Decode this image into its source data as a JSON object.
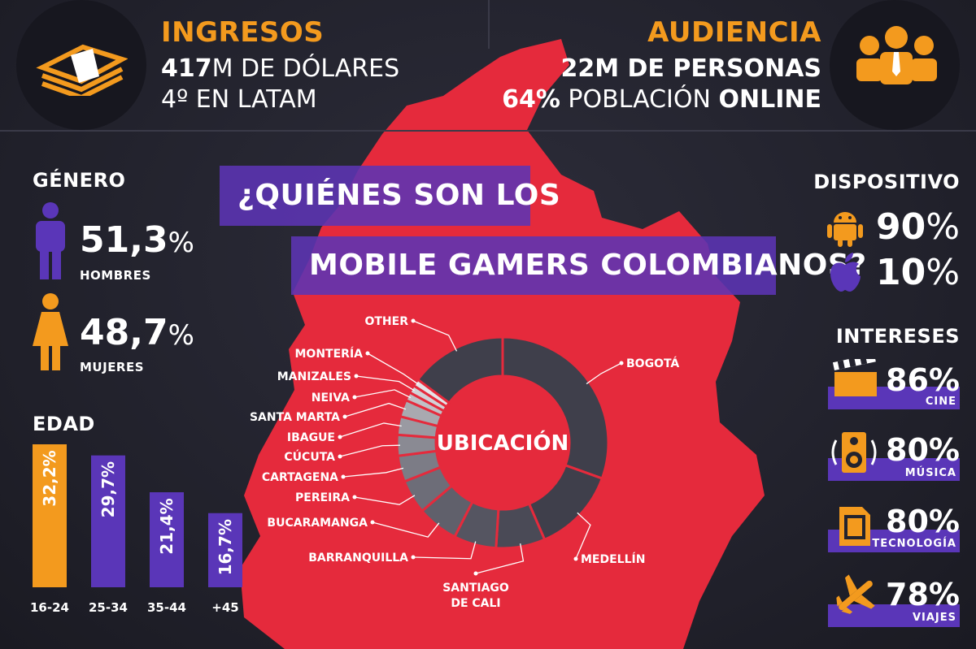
{
  "header": {
    "ingresos": {
      "title": "INGRESOS",
      "line1_bold": "417",
      "line1_rest": "M DE DÓLARES",
      "line2": "4º EN LATAM"
    },
    "audiencia": {
      "title": "AUDIENCIA",
      "line1": "22M DE PERSONAS",
      "line2_bold": "64%",
      "line2_mid": " POBLACIÓN ",
      "line2_end": "ONLINE"
    }
  },
  "banner": {
    "line1": "¿QUIÉNES SON LOS",
    "line2": "MOBILE GAMERS COLOMBIANOS?"
  },
  "genero": {
    "title": "GÉNERO",
    "items": [
      {
        "value": "51,3",
        "unit": "%",
        "label": "HOMBRES"
      },
      {
        "value": "48,7",
        "unit": "%",
        "label": "MUJERES"
      }
    ]
  },
  "dispositivo": {
    "title": "DISPOSITIVO",
    "items": [
      {
        "icon": "android-icon",
        "value": "90",
        "unit": "%"
      },
      {
        "icon": "apple-icon",
        "value": "10",
        "unit": "%"
      }
    ]
  },
  "intereses": {
    "title": "INTERESES",
    "items": [
      {
        "icon": "clapperboard-icon",
        "value": "86%",
        "label": "CINE"
      },
      {
        "icon": "speaker-icon",
        "value": "80%",
        "label": "MÚSICA"
      },
      {
        "icon": "memory-card-icon",
        "value": "80%",
        "label": "TECNOLOGÍA"
      },
      {
        "icon": "airplane-icon",
        "value": "78%",
        "label": "VIAJES"
      }
    ]
  },
  "colors": {
    "orange": "#f39a1e",
    "purple": "#5a36b8",
    "red": "#e52a3c",
    "dark": "#23232e"
  },
  "chart_data": [
    {
      "type": "bar",
      "title": "EDAD",
      "categories": [
        "16-24",
        "25-34",
        "35-44",
        "+45"
      ],
      "values": [
        32.2,
        29.7,
        21.4,
        16.7
      ],
      "value_labels": [
        "32,2%",
        "29,7%",
        "21,4%",
        "16,7%"
      ],
      "colors": [
        "#f39a1e",
        "#5a36b8",
        "#5a36b8",
        "#5a36b8"
      ],
      "ylim": [
        0,
        32.2
      ]
    },
    {
      "type": "pie",
      "title": "UBICACIÓN",
      "categories": [
        "BOGOTÁ",
        "MEDELLÍN",
        "SANTIAGO DE CALI",
        "BARRANQUILLA",
        "BUCARAMANGA",
        "PEREIRA",
        "CARTAGENA",
        "CÚCUTA",
        "IBAGUE",
        "SANTA MARTA",
        "NEIVA",
        "MANIZALES",
        "MONTERÍA",
        "OTHER"
      ],
      "values": [
        30.5,
        13,
        7.5,
        6.5,
        6.3,
        5.2,
        4,
        3.2,
        2.8,
        2.6,
        1.3,
        1.2,
        1.1,
        14.8
      ]
    }
  ]
}
